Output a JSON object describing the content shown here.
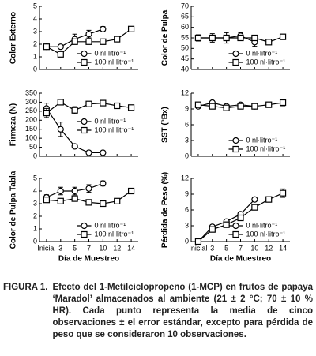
{
  "chart_data": [
    {
      "type": "line",
      "ylabel": "Color Externo",
      "categories": [
        null,
        null,
        null,
        null,
        null,
        null,
        null
      ],
      "ylim": [
        0,
        5
      ],
      "yticks": [
        0,
        1,
        2,
        3,
        4,
        5
      ],
      "legend": "lower right",
      "series": [
        {
          "name": "0 nl·litro⁻¹",
          "color": "#000000",
          "marker": "circle",
          "values": [
            1.8,
            1.8,
            2.4,
            2.8,
            3.2,
            null,
            null
          ],
          "errors": [
            null,
            null,
            0.4,
            0.3,
            0.2,
            null,
            null
          ]
        },
        {
          "name": "100 nl·litro⁻¹",
          "color": "#000000",
          "marker": "square",
          "values": [
            1.8,
            1.2,
            2.2,
            2.2,
            2.2,
            2.4,
            3.2
          ],
          "errors": [
            null,
            null,
            null,
            null,
            null,
            null,
            0.2
          ]
        }
      ]
    },
    {
      "type": "line",
      "ylabel": "Color de Pulpa",
      "categories": [
        null,
        null,
        null,
        null,
        null,
        null,
        null
      ],
      "ylim": [
        40,
        70
      ],
      "yticks": [
        40,
        45,
        50,
        55,
        60,
        65,
        70
      ],
      "legend": "lower right",
      "series": [
        {
          "name": "0 nl·litro⁻¹",
          "color": "#000000",
          "marker": "circle",
          "values": [
            55,
            55,
            55,
            56,
            53,
            null,
            null
          ],
          "errors": [
            1.5,
            2,
            2.5,
            1.5,
            2,
            null,
            null
          ]
        },
        {
          "name": "100 nl·litro⁻¹",
          "color": "#000000",
          "marker": "square",
          "values": [
            55,
            55,
            55,
            55,
            55,
            53,
            55.5
          ],
          "errors": [
            null,
            null,
            null,
            null,
            null,
            null,
            null
          ]
        }
      ]
    },
    {
      "type": "line",
      "ylabel": "Firmeza (N)",
      "categories": [
        null,
        null,
        null,
        null,
        null,
        null,
        null
      ],
      "ylim": [
        0,
        350
      ],
      "yticks": [
        0,
        50,
        100,
        150,
        200,
        250,
        300,
        350
      ],
      "legend": "center right",
      "series": [
        {
          "name": "0 nl·litro⁻¹",
          "color": "#000000",
          "marker": "circle",
          "values": [
            265,
            150,
            55,
            20,
            20,
            null,
            null
          ],
          "errors": [
            30,
            40,
            null,
            null,
            null,
            null,
            null
          ]
        },
        {
          "name": "100 nl·litro⁻¹",
          "color": "#000000",
          "marker": "square",
          "values": [
            240,
            300,
            255,
            290,
            295,
            280,
            270
          ],
          "errors": [
            25,
            null,
            20,
            null,
            null,
            null,
            null
          ]
        }
      ]
    },
    {
      "type": "line",
      "ylabel": "SST (°Bx)",
      "categories": [
        null,
        null,
        null,
        null,
        null,
        null,
        null
      ],
      "ylim": [
        0,
        12
      ],
      "yticks": [
        0,
        3,
        6,
        9,
        12
      ],
      "legend": "lower right",
      "series": [
        {
          "name": "0 nl·litro⁻¹",
          "color": "#000000",
          "marker": "circle",
          "values": [
            9.5,
            10.2,
            9.5,
            9.8,
            9.5,
            null,
            null
          ],
          "errors": [
            null,
            null,
            null,
            null,
            null,
            null,
            null
          ]
        },
        {
          "name": "100 nl·litro⁻¹",
          "color": "#000000",
          "marker": "square",
          "values": [
            9.8,
            9.5,
            9.2,
            9.5,
            9.5,
            9.8,
            10.2
          ],
          "errors": [
            null,
            null,
            0.5,
            null,
            null,
            null,
            0.6
          ]
        }
      ]
    },
    {
      "type": "line",
      "ylabel": "Color de Pulpa Tabla",
      "xlabel": "Día de Muestreo",
      "categories": [
        "Inicial",
        "3",
        "5",
        "7",
        "10",
        "12",
        "14"
      ],
      "ylim": [
        0,
        5
      ],
      "yticks": [
        0,
        1,
        2,
        3,
        4,
        5
      ],
      "legend": "lower right",
      "series": [
        {
          "name": "0 nl·litro⁻¹",
          "color": "#000000",
          "marker": "circle",
          "values": [
            3.5,
            4.0,
            4.0,
            4.2,
            4.6,
            null,
            null
          ],
          "errors": [
            0.2,
            0.3,
            0.3,
            0.3,
            0.2,
            null,
            null
          ]
        },
        {
          "name": "100 nl·litro⁻¹",
          "color": "#000000",
          "marker": "square",
          "values": [
            3.3,
            3.2,
            3.4,
            3.1,
            3.0,
            3.2,
            4.0
          ],
          "errors": [
            null,
            null,
            null,
            null,
            null,
            0.2,
            null
          ]
        }
      ]
    },
    {
      "type": "line",
      "ylabel": "Pérdida de Peso (%)",
      "xlabel": "Día de Muestreo",
      "categories": [
        "Inicial",
        "3",
        "5",
        "7",
        "10",
        "12",
        "14"
      ],
      "ylim": [
        0,
        12
      ],
      "yticks": [
        0,
        3,
        6,
        9,
        12
      ],
      "legend": "lower right",
      "series": [
        {
          "name": "0 nl·litro⁻¹",
          "color": "#000000",
          "marker": "circle",
          "values": [
            0,
            2.8,
            3.8,
            5.2,
            8.0,
            null,
            null
          ],
          "errors": [
            null,
            null,
            null,
            null,
            null,
            null,
            null
          ]
        },
        {
          "name": "100 nl·litro⁻¹",
          "color": "#000000",
          "marker": "square",
          "values": [
            0,
            2.3,
            3.2,
            4.5,
            6.5,
            8.0,
            9.2
          ],
          "errors": [
            null,
            null,
            null,
            0.5,
            null,
            null,
            0.8
          ]
        }
      ]
    }
  ],
  "caption": {
    "label": "FIGURA 1.",
    "text": "Efecto del 1-Metilciclopropeno (1-MCP) en frutos de papaya ‘Maradol’ almacenados al ambiente (21 ± 2 °C; 70 ± 10 % HR). Cada punto representa la media de cinco observaciones ± el error estándar, excepto para pérdida de peso que se consideraron 10 observaciones."
  }
}
